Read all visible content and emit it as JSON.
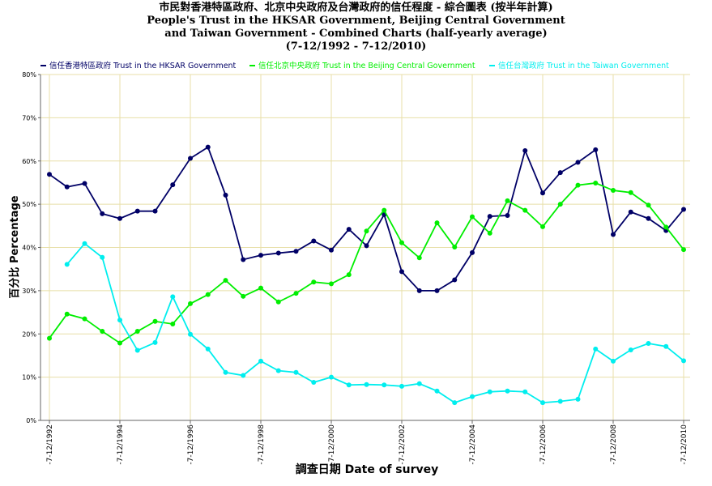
{
  "titles": [
    "市民對香港特區政府、北京中央政府及台灣政府的信任程度 - 綜合圖表 (按半年計算)",
    "People's Trust in the HKSAR Government, Beijing Central Government",
    "and Taiwan Government - Combined Charts (half-yearly average)",
    "(7-12/1992 - 7-12/2010)"
  ],
  "chart_data": {
    "type": "line",
    "xlabel": "調查日期 Date of survey",
    "ylabel": "百分比 Percentage",
    "ylim": [
      0,
      80
    ],
    "yticks": [
      "0%",
      "10%",
      "20%",
      "30%",
      "40%",
      "50%",
      "60%",
      "70%",
      "80%"
    ],
    "xticks": [
      "7-12/1992",
      "7-12/1994",
      "7-12/1996",
      "7-12/1998",
      "7-12/2000",
      "7-12/2002",
      "7-12/2004",
      "7-12/2006",
      "7-12/2008",
      "7-12/2010"
    ],
    "grid": true,
    "legend_position": "top",
    "series": [
      {
        "name": "信任香港特區政府 Trust in the HKSAR Government",
        "color": "#000066",
        "values": [
          56.9,
          54.0,
          54.8,
          47.8,
          46.7,
          48.4,
          48.4,
          54.5,
          60.6,
          63.2,
          52.1,
          37.2,
          38.2,
          38.7,
          39.1,
          41.5,
          39.4,
          44.2,
          40.4,
          47.6,
          34.4,
          30.0,
          30.0,
          32.5,
          38.8,
          47.2,
          47.4,
          62.4,
          52.6,
          57.3,
          59.7,
          62.6,
          43.0,
          48.2,
          46.7,
          43.9,
          48.8
        ]
      },
      {
        "name": "信任北京中央政府 Trust in the Beijing Central Government",
        "color": "#00ee00",
        "values": [
          19.0,
          24.6,
          23.5,
          20.6,
          17.9,
          20.6,
          22.9,
          22.3,
          27.0,
          29.1,
          32.4,
          28.7,
          30.6,
          27.4,
          29.4,
          32.0,
          31.6,
          33.7,
          43.8,
          48.6,
          41.1,
          37.6,
          45.7,
          40.1,
          47.1,
          43.3,
          50.8,
          48.6,
          44.8,
          50.0,
          54.4,
          54.9,
          53.2,
          52.7,
          49.8,
          44.7,
          39.5
        ]
      },
      {
        "name": "信任台灣政府 Trust in the Taiwan Government",
        "color": "#00eeee",
        "values": [
          null,
          36.1,
          40.9,
          37.7,
          23.2,
          16.2,
          18.0,
          28.6,
          19.9,
          16.5,
          11.1,
          10.4,
          13.7,
          11.5,
          11.1,
          8.8,
          10.0,
          8.2,
          8.3,
          8.2,
          7.9,
          8.5,
          6.8,
          4.1,
          5.5,
          6.6,
          6.8,
          6.6,
          4.1,
          4.4,
          4.9,
          16.5,
          13.7,
          16.3,
          17.8,
          17.1,
          13.8
        ]
      }
    ]
  }
}
